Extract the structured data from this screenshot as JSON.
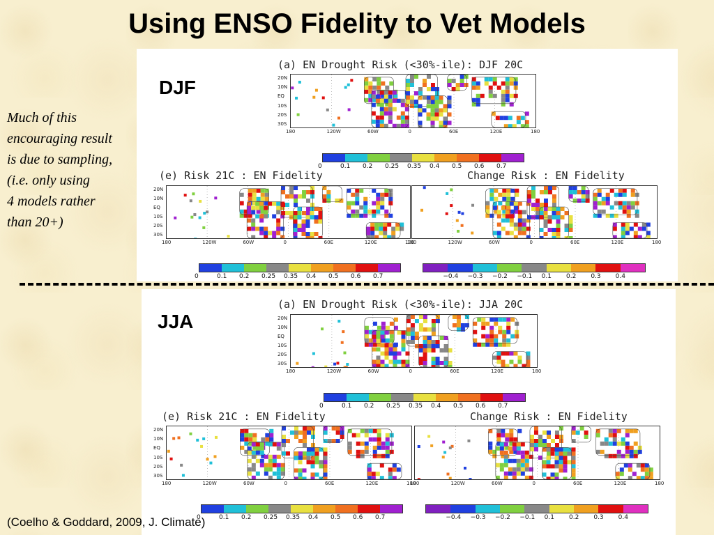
{
  "title": "Using ENSO Fidelity to Vet Models",
  "note": "Much of this\nencouraging result\nis due to sampling,\n(i.e. only using\n4 models rather\nthan 20+)",
  "citation": "(Coelho & Goddard, 2009, J. Climate)",
  "seasons": [
    {
      "label": "DJF",
      "top_title": "(a)  EN Drought Risk (<30%-ile): DJF 20C",
      "bottom_left_title": "(e)         Risk 21C : EN Fidelity",
      "bottom_right_title": "Change Risk : EN Fidelity"
    },
    {
      "label": "JJA",
      "top_title": "(a)  EN Drought Risk (<30%-ile): JJA 20C",
      "bottom_left_title": "(e)         Risk 21C : EN Fidelity",
      "bottom_right_title": "Change Risk : EN Fidelity"
    }
  ],
  "lat_labels": [
    "20N",
    "10N",
    "EQ",
    "10S",
    "20S",
    "30S"
  ],
  "lon_labels": [
    "180",
    "120W",
    "60W",
    "0",
    "60E",
    "120E",
    "180"
  ],
  "risk_scale": {
    "ticks": [
      "0",
      "0.1",
      "0.2",
      "0.25",
      "0.35",
      "0.4",
      "0.5",
      "0.6",
      "0.7"
    ],
    "colors": [
      "#2040e0",
      "#20c0d8",
      "#80d040",
      "#888888",
      "#e8e040",
      "#f0a020",
      "#f07020",
      "#e01010",
      "#a020d0"
    ]
  },
  "change_scale": {
    "ticks": [
      "−0.4",
      "−0.3",
      "−0.2",
      "−0.1",
      "0.1",
      "0.2",
      "0.3",
      "0.4"
    ],
    "colors": [
      "#8020c0",
      "#2040e0",
      "#20c0d8",
      "#80d040",
      "#888888",
      "#e8e040",
      "#f0a020",
      "#e01010",
      "#e030c0"
    ]
  },
  "colors": {
    "background": "#f8efcf",
    "panel": "#ffffff"
  }
}
